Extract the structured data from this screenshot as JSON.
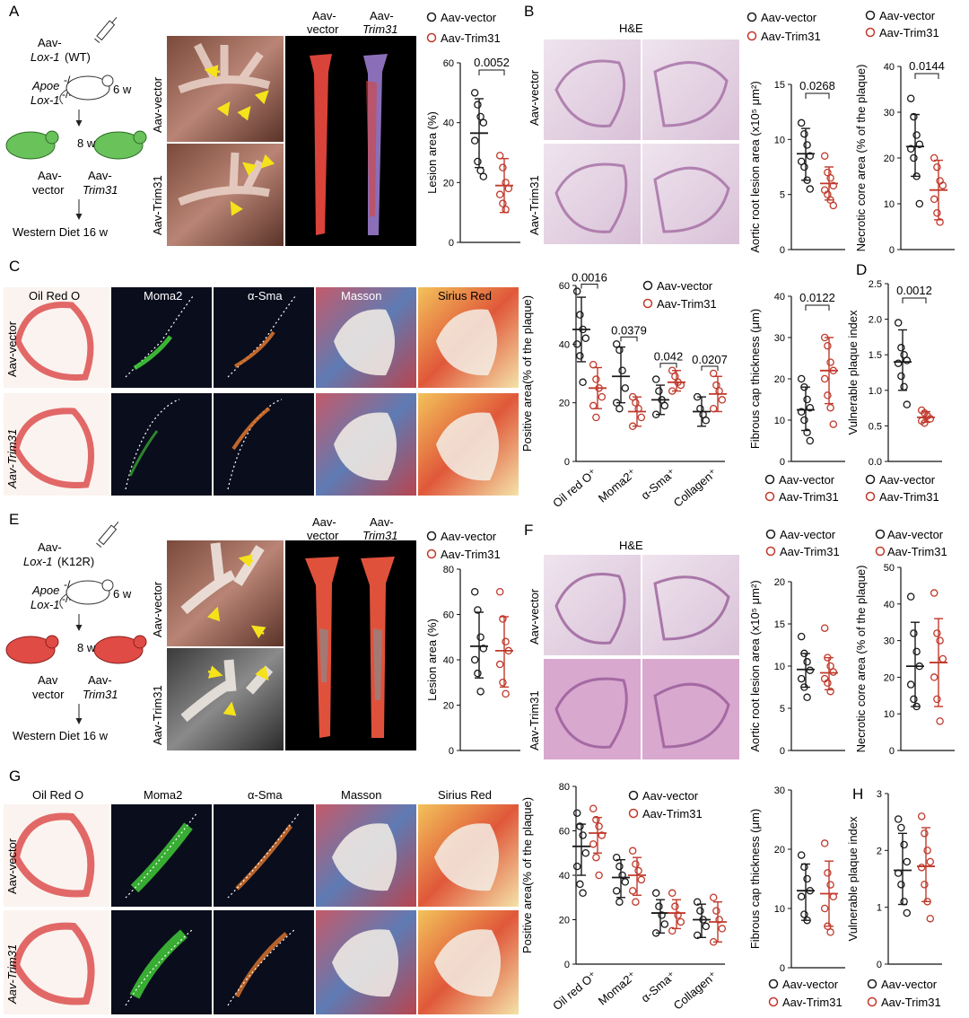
{
  "panels": {
    "A": {
      "letter": "A",
      "schema": {
        "inj1": "Aav-",
        "inj2": "Lox-1",
        "inj3": "(WT)",
        "mouse1": "Apoe",
        "mouse1sup": "-/-",
        "mouse2": "Lox-1",
        "mouse2sup": "-/-",
        "age": "6 w",
        "age2": "8 w",
        "grp1a": "Aav-",
        "grp1b": "vector",
        "grp2a": "Aav-",
        "grp2b": "Trim31",
        "diet": "Western Diet 16 w"
      },
      "photo_rows": [
        "Aav-vector",
        "Aav-Trim31"
      ],
      "enface_cols": [
        [
          "Aav-",
          "vector"
        ],
        [
          "Aav-",
          "Trim31"
        ]
      ]
    },
    "B": {
      "letter": "B",
      "he": "H&E",
      "rows": [
        "Aav-vector",
        "Aav-Trim31"
      ]
    },
    "C": {
      "letter": "C",
      "cols": [
        "Oil Red O",
        "Moma2",
        "α-Sma",
        "Masson",
        "Sirius Red"
      ],
      "rows": [
        "Aav-vector",
        "Aav-Trim31"
      ]
    },
    "D": {
      "letter": "D"
    },
    "E": {
      "letter": "E",
      "schema": {
        "inj1": "Aav-",
        "inj2": "Lox-1",
        "inj3": "(K12R)",
        "mouse1": "Apoe",
        "mouse1sup": "-/-",
        "mouse2": "Lox-1",
        "mouse2sup": "-/-",
        "age": "6 w",
        "age2": "8 w",
        "grp1a": "Aav",
        "grp1b": "vector",
        "grp2a": "Aav-",
        "grp2b": "Trim31",
        "diet": "Western Diet 16 w"
      },
      "photo_rows": [
        "Aav-vector",
        "Aav-Trim31"
      ],
      "enface_cols": [
        [
          "Aav-",
          "vector"
        ],
        [
          "Aav-",
          "Trim31"
        ]
      ]
    },
    "F": {
      "letter": "F",
      "he": "H&E",
      "rows": [
        "Aav-vector",
        "Aav-Trim31"
      ]
    },
    "G": {
      "letter": "G",
      "cols": [
        "Oil Red O",
        "Moma2",
        "α-Sma",
        "Masson",
        "Sirius Red"
      ],
      "rows": [
        "Aav-vector",
        "Aav-Trim31"
      ]
    },
    "H": {
      "letter": "H"
    }
  },
  "legend": {
    "vector": "Aav-vector",
    "trim": "Aav-Trim31"
  },
  "colors": {
    "vector": "#1a1a1a",
    "trim": "#c0392b"
  },
  "chart_data": [
    {
      "id": "A_lesion",
      "type": "scatter",
      "ylabel": "Lesion area (%)",
      "ylim": [
        0,
        60
      ],
      "yticks": [
        0,
        20,
        40,
        60
      ],
      "groups": [
        "Aav-vector",
        "Aav-Trim31"
      ],
      "means": [
        36.5,
        19
      ],
      "sd": [
        [
          25,
          48
        ],
        [
          10,
          28
        ]
      ],
      "points": [
        [
          50,
          46,
          42,
          40,
          34,
          27,
          24,
          22
        ],
        [
          29,
          25,
          20,
          18,
          16,
          13,
          11
        ]
      ],
      "pvalue": "0.0052"
    },
    {
      "id": "B_root",
      "type": "scatter",
      "ylabel": "Aortic root lesion area (x10⁵ μm²)",
      "ylim": [
        0,
        15
      ],
      "yticks": [
        0,
        5,
        10,
        15
      ],
      "groups": [
        "Aav-vector",
        "Aav-Trim31"
      ],
      "means": [
        8.7,
        6
      ],
      "sd": [
        [
          6.3,
          11
        ],
        [
          4.5,
          7.5
        ]
      ],
      "points": [
        [
          11.5,
          10.5,
          9.5,
          8.5,
          8,
          7.5,
          6.3,
          5.5
        ],
        [
          8.5,
          7,
          6.5,
          5.8,
          5.4,
          5,
          4.5,
          4
        ]
      ],
      "pvalue": "0.0268"
    },
    {
      "id": "B_necrotic",
      "type": "scatter",
      "ylabel": "Necrotic core area (% of the plaque)",
      "ylim": [
        0,
        40
      ],
      "yticks": [
        0,
        10,
        20,
        30,
        40
      ],
      "groups": [
        "Aav-vector",
        "Aav-Trim31"
      ],
      "means": [
        22.5,
        13
      ],
      "sd": [
        [
          16,
          29.5
        ],
        [
          6.5,
          19.5
        ]
      ],
      "points": [
        [
          33,
          29,
          25,
          23,
          22,
          20,
          16,
          10
        ],
        [
          20,
          18,
          15,
          14,
          11,
          8,
          6
        ]
      ],
      "pvalue": "0.0144"
    },
    {
      "id": "C_positive",
      "type": "scatter",
      "ylabel": "Positive area(% of the plaque)",
      "ylim": [
        0,
        60
      ],
      "yticks": [
        0,
        20,
        40,
        60
      ],
      "categories": [
        "Oil red O⁺",
        "Moma2⁺",
        "α-Sma⁺",
        "Collagen⁺"
      ],
      "series": [
        {
          "name": "Aav-vector",
          "means": [
            45,
            29,
            21,
            17
          ],
          "sd": [
            [
              34,
              56
            ],
            [
              20,
              39
            ],
            [
              16,
              26
            ],
            [
              12,
              22
            ]
          ],
          "points": [
            [
              58,
              50,
              45,
              42,
              40,
              36,
              27
            ],
            [
              40,
              38,
              31,
              25,
              20,
              18
            ],
            [
              28,
              24,
              21,
              19,
              16
            ],
            [
              22,
              18,
              16,
              14
            ]
          ]
        },
        {
          "name": "Aav-Trim31",
          "means": [
            25,
            17,
            27,
            23
          ],
          "sd": [
            [
              18,
              32
            ],
            [
              12,
              22
            ],
            [
              24,
              31
            ],
            [
              17,
              29
            ]
          ],
          "points": [
            [
              33,
              28,
              25,
              22,
              19,
              15
            ],
            [
              22,
              20,
              18,
              15,
              12
            ],
            [
              31,
              29,
              27,
              26,
              24
            ],
            [
              30,
              26,
              24,
              21,
              18
            ]
          ]
        }
      ],
      "pvalues": [
        "0.0016",
        "0.0379",
        "0.042",
        "0.0207"
      ]
    },
    {
      "id": "C_cap",
      "type": "scatter",
      "ylabel": "Fibrous cap thickness (μm)",
      "ylim": [
        0,
        40
      ],
      "yticks": [
        0,
        10,
        20,
        30,
        40
      ],
      "groups": [
        "Aav-vector",
        "Aav-Trim31"
      ],
      "means": [
        12.5,
        22
      ],
      "sd": [
        [
          7.5,
          18
        ],
        [
          14,
          30
        ]
      ],
      "points": [
        [
          20,
          18,
          15,
          13,
          12,
          10,
          7,
          5
        ],
        [
          30,
          28,
          24,
          22,
          20,
          16,
          13,
          9
        ]
      ],
      "pvalue": "0.0122"
    },
    {
      "id": "D_vuln",
      "type": "scatter",
      "ylabel": "Vulnerable plaque index",
      "ylim": [
        0,
        2.5
      ],
      "yticks": [
        0,
        0.5,
        1.0,
        1.5,
        2.0,
        2.5
      ],
      "groups": [
        "Aav-vector",
        "Aav-Trim31"
      ],
      "means": [
        1.4,
        0.62
      ],
      "sd": [
        [
          1.0,
          1.85
        ],
        [
          0.55,
          0.7
        ]
      ],
      "points": [
        [
          1.95,
          1.6,
          1.5,
          1.42,
          1.38,
          1.2,
          1.05,
          0.8
        ],
        [
          0.72,
          0.68,
          0.64,
          0.6,
          0.57,
          0.54
        ]
      ],
      "pvalue": "0.0012"
    },
    {
      "id": "E_lesion",
      "type": "scatter",
      "ylabel": "Lesion area (%)",
      "ylim": [
        0,
        80
      ],
      "yticks": [
        0,
        20,
        40,
        60,
        80
      ],
      "groups": [
        "Aav-vector",
        "Aav-Trim31"
      ],
      "means": [
        46,
        44
      ],
      "sd": [
        [
          32,
          61
        ],
        [
          28,
          59
        ]
      ],
      "points": [
        [
          70,
          62,
          50,
          45,
          40,
          34,
          26
        ],
        [
          70,
          58,
          48,
          44,
          38,
          30,
          25
        ]
      ]
    },
    {
      "id": "F_root",
      "type": "scatter",
      "ylabel": "Aortic root lesion area (x10⁵ μm²)",
      "ylim": [
        0,
        20
      ],
      "yticks": [
        0,
        5,
        10,
        15,
        20
      ],
      "groups": [
        "Aav-vector",
        "Aav-Trim31"
      ],
      "means": [
        9.6,
        9.2
      ],
      "sd": [
        [
          7.5,
          11.5
        ],
        [
          7.2,
          11
        ]
      ],
      "points": [
        [
          13.5,
          11.5,
          10.5,
          9.5,
          8.5,
          7.5,
          6.3
        ],
        [
          14.5,
          11,
          10,
          9.3,
          8.5,
          8,
          7
        ]
      ]
    },
    {
      "id": "F_necrotic",
      "type": "scatter",
      "ylabel": "Necrotic core area (% of the plaque)",
      "ylim": [
        0,
        50
      ],
      "yticks": [
        0,
        10,
        20,
        30,
        40,
        50
      ],
      "groups": [
        "Aav-vector",
        "Aav-Trim31"
      ],
      "means": [
        23,
        24
      ],
      "sd": [
        [
          12,
          35
        ],
        [
          12,
          36
        ]
      ],
      "points": [
        [
          42,
          32,
          27,
          23,
          18,
          14,
          12
        ],
        [
          43,
          32,
          30,
          25,
          20,
          14,
          8
        ]
      ]
    },
    {
      "id": "G_positive",
      "type": "scatter",
      "ylabel": "Positive area(% of the plaque)",
      "ylim": [
        0,
        80
      ],
      "yticks": [
        0,
        20,
        40,
        60,
        80
      ],
      "categories": [
        "Oil red O⁺",
        "Moma2⁺",
        "α-Sma⁺",
        "Collagen⁺"
      ],
      "series": [
        {
          "name": "Aav-vector",
          "means": [
            53,
            39,
            23,
            20
          ],
          "sd": [
            [
              40,
              63
            ],
            [
              30,
              47
            ],
            [
              14,
              29
            ],
            [
              12,
              27
            ]
          ],
          "points": [
            [
              68,
              62,
              58,
              50,
              44,
              36,
              32
            ],
            [
              48,
              44,
              40,
              37,
              33,
              28
            ],
            [
              32,
              26,
              22,
              18,
              14
            ],
            [
              28,
              24,
              20,
              17,
              13
            ]
          ]
        },
        {
          "name": "Aav-Trim31",
          "means": [
            59,
            40,
            23,
            19
          ],
          "sd": [
            [
              50,
              66
            ],
            [
              31,
              48
            ],
            [
              16,
              29
            ],
            [
              10,
              28
            ]
          ],
          "points": [
            [
              70,
              65,
              62,
              58,
              54,
              48,
              40
            ],
            [
              51,
              45,
              42,
              38,
              33,
              28
            ],
            [
              32,
              26,
              22,
              19,
              15
            ],
            [
              30,
              24,
              20,
              16,
              10
            ]
          ]
        }
      ]
    },
    {
      "id": "G_cap",
      "type": "scatter",
      "ylabel": "Fibrous cap thickness (μm)",
      "ylim": [
        0,
        30
      ],
      "yticks": [
        0,
        10,
        20,
        30
      ],
      "groups": [
        "Aav-vector",
        "Aav-Trim31"
      ],
      "means": [
        13,
        12.5
      ],
      "sd": [
        [
          8,
          17.5
        ],
        [
          7,
          18
        ]
      ],
      "points": [
        [
          19,
          17,
          15,
          13,
          12,
          9,
          8
        ],
        [
          21,
          16,
          14,
          12,
          10,
          7,
          6
        ]
      ]
    },
    {
      "id": "H_vuln",
      "type": "scatter",
      "ylabel": "Vulnerable plaque index",
      "ylim": [
        0,
        3
      ],
      "yticks": [
        0,
        1,
        2,
        3
      ],
      "groups": [
        "Aav-vector",
        "Aav-Trim31"
      ],
      "means": [
        1.65,
        1.72
      ],
      "sd": [
        [
          1.05,
          2.3
        ],
        [
          1.1,
          2.4
        ]
      ],
      "points": [
        [
          2.55,
          2.4,
          2.1,
          1.8,
          1.6,
          1.4,
          1.1,
          0.9
        ],
        [
          2.6,
          2.3,
          2.0,
          1.8,
          1.7,
          1.4,
          1.1,
          0.8
        ]
      ]
    }
  ]
}
